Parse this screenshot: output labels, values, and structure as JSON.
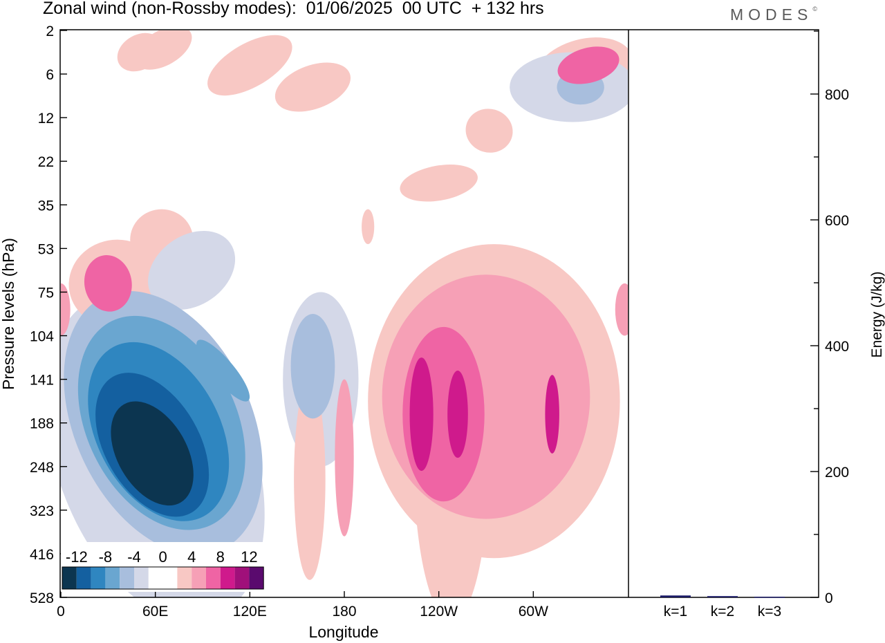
{
  "title": "Zonal wind (non-Rossby modes):  01/06/2025  00 UTC  + 132 hrs",
  "brand": {
    "name": "MODES",
    "mark": "©"
  },
  "chart_data": [
    {
      "type": "heatmap",
      "title": "Zonal wind (non-Rossby modes):  01/06/2025  00 UTC  + 132 hrs",
      "xlabel": "Longitude",
      "ylabel": "Pressure levels (hPa)",
      "x_tick_labels": [
        "0",
        "60E",
        "120E",
        "180",
        "120W",
        "60W"
      ],
      "y_tick_labels": [
        "2",
        "6",
        "12",
        "22",
        "35",
        "53",
        "75",
        "104",
        "141",
        "188",
        "248",
        "323",
        "416",
        "528"
      ],
      "colorbar": {
        "tick_labels": [
          "-12",
          "-8",
          "-4",
          "0",
          "4",
          "8",
          "12"
        ],
        "colors": [
          "#0c3550",
          "#1460a0",
          "#2f86c0",
          "#6aa6d0",
          "#a8bedd",
          "#d4d8e8",
          "#ffffff",
          "#ffffff",
          "#f8c8c4",
          "#f6a0b6",
          "#ef64a4",
          "#cf1a8c",
          "#a0107a",
          "#5a0a6e"
        ]
      },
      "blobs": [
        {
          "lon": 58,
          "lev": 9.7,
          "w": 44,
          "h": 2.6,
          "rot": -30,
          "v": -12
        },
        {
          "lon": 58,
          "lev": 9.5,
          "w": 60,
          "h": 3.6,
          "rot": -30,
          "v": -10
        },
        {
          "lon": 62,
          "lev": 9.2,
          "w": 78,
          "h": 4.4,
          "rot": -28,
          "v": -8
        },
        {
          "lon": 64,
          "lev": 9.0,
          "w": 95,
          "h": 5.2,
          "rot": -26,
          "v": -6
        },
        {
          "lon": 65,
          "lev": 9.0,
          "w": 112,
          "h": 6.4,
          "rot": -25,
          "v": -4
        },
        {
          "lon": 60,
          "lev": 9.8,
          "w": 125,
          "h": 7.8,
          "rot": -20,
          "v": -2
        },
        {
          "lon": 103,
          "lev": 7.8,
          "w": 14,
          "h": 1.8,
          "rot": -40,
          "v": -6
        },
        {
          "lon": 160,
          "lev": 7.7,
          "w": 28,
          "h": 2.4,
          "rot": 0,
          "v": -4
        },
        {
          "lon": 165,
          "lev": 8.0,
          "w": 48,
          "h": 4.0,
          "rot": 0,
          "v": -2
        },
        {
          "lon": 243,
          "lev": 8.8,
          "w": 52,
          "h": 4.0,
          "rot": 0,
          "v": 6
        },
        {
          "lon": 248,
          "lev": 9.8,
          "w": 48,
          "h": 7.5,
          "rot": 0,
          "v": 2
        },
        {
          "lon": 270,
          "lev": 8.4,
          "w": 132,
          "h": 5.6,
          "rot": 0,
          "v": 4
        },
        {
          "lon": 275,
          "lev": 8.5,
          "w": 160,
          "h": 7.2,
          "rot": 0,
          "v": 2
        },
        {
          "lon": 229,
          "lev": 8.8,
          "w": 15,
          "h": 2.6,
          "rot": 0,
          "v": 8
        },
        {
          "lon": 252,
          "lev": 8.8,
          "w": 13,
          "h": 2.0,
          "rot": 0,
          "v": 8
        },
        {
          "lon": 312,
          "lev": 8.8,
          "w": 9,
          "h": 1.8,
          "rot": 0,
          "v": 8
        },
        {
          "lon": 180,
          "lev": 9.8,
          "w": 12,
          "h": 3.6,
          "rot": 0,
          "v": 4
        },
        {
          "lon": 158,
          "lev": 10.3,
          "w": 20,
          "h": 4.6,
          "rot": 0,
          "v": 2
        },
        {
          "lon": 30,
          "lev": 5.8,
          "w": 30,
          "h": 1.3,
          "rot": -10,
          "v": 6
        },
        {
          "lon": 35,
          "lev": 5.8,
          "w": 60,
          "h": 2.0,
          "rot": -10,
          "v": 2
        },
        {
          "lon": 64,
          "lev": 4.8,
          "w": 40,
          "h": 1.4,
          "rot": 0,
          "v": 2
        },
        {
          "lon": 83,
          "lev": 5.5,
          "w": 60,
          "h": 1.6,
          "rot": -35,
          "v": -2
        },
        {
          "lon": 335,
          "lev": 0.8,
          "w": 40,
          "h": 0.8,
          "rot": -15,
          "v": 6
        },
        {
          "lon": 332,
          "lev": 0.9,
          "w": 64,
          "h": 1.4,
          "rot": -15,
          "v": 2
        },
        {
          "lon": 325,
          "lev": 1.3,
          "w": 80,
          "h": 1.6,
          "rot": 0,
          "v": -2
        },
        {
          "lon": 330,
          "lev": 1.3,
          "w": 30,
          "h": 0.8,
          "rot": 0,
          "v": -4
        },
        {
          "lon": 50,
          "lev": 0.5,
          "w": 30,
          "h": 0.8,
          "rot": -30,
          "v": 2
        },
        {
          "lon": 65,
          "lev": 0.4,
          "w": 40,
          "h": 0.8,
          "rot": -30,
          "v": 2
        },
        {
          "lon": 120,
          "lev": 0.8,
          "w": 60,
          "h": 1.0,
          "rot": -30,
          "v": 2
        },
        {
          "lon": 160,
          "lev": 1.3,
          "w": 50,
          "h": 1.0,
          "rot": -20,
          "v": 2
        },
        {
          "lon": 240,
          "lev": 3.5,
          "w": 50,
          "h": 0.8,
          "rot": -10,
          "v": 2
        },
        {
          "lon": 272,
          "lev": 2.3,
          "w": 30,
          "h": 1.0,
          "rot": 15,
          "v": 2
        },
        {
          "lon": 0,
          "lev": 6.4,
          "w": 12,
          "h": 1.2,
          "rot": 0,
          "v": 4
        },
        {
          "lon": 358,
          "lev": 6.4,
          "w": 12,
          "h": 1.2,
          "rot": 0,
          "v": 4
        },
        {
          "lon": 195,
          "lev": 4.5,
          "w": 8,
          "h": 0.8,
          "rot": 0,
          "v": 2
        },
        {
          "lon": 170,
          "lev": 9.9,
          "w": 40,
          "h": 7.0,
          "rot": 0,
          "v": 0
        }
      ]
    },
    {
      "type": "bar",
      "categories": [
        "k=1",
        "k=2",
        "k=3"
      ],
      "values": [
        3,
        2,
        1
      ],
      "ylabel": "Energy (J/kg)",
      "ylim": [
        0,
        900
      ],
      "y_tick_labels": [
        "0",
        "200",
        "400",
        "600",
        "800"
      ]
    }
  ]
}
